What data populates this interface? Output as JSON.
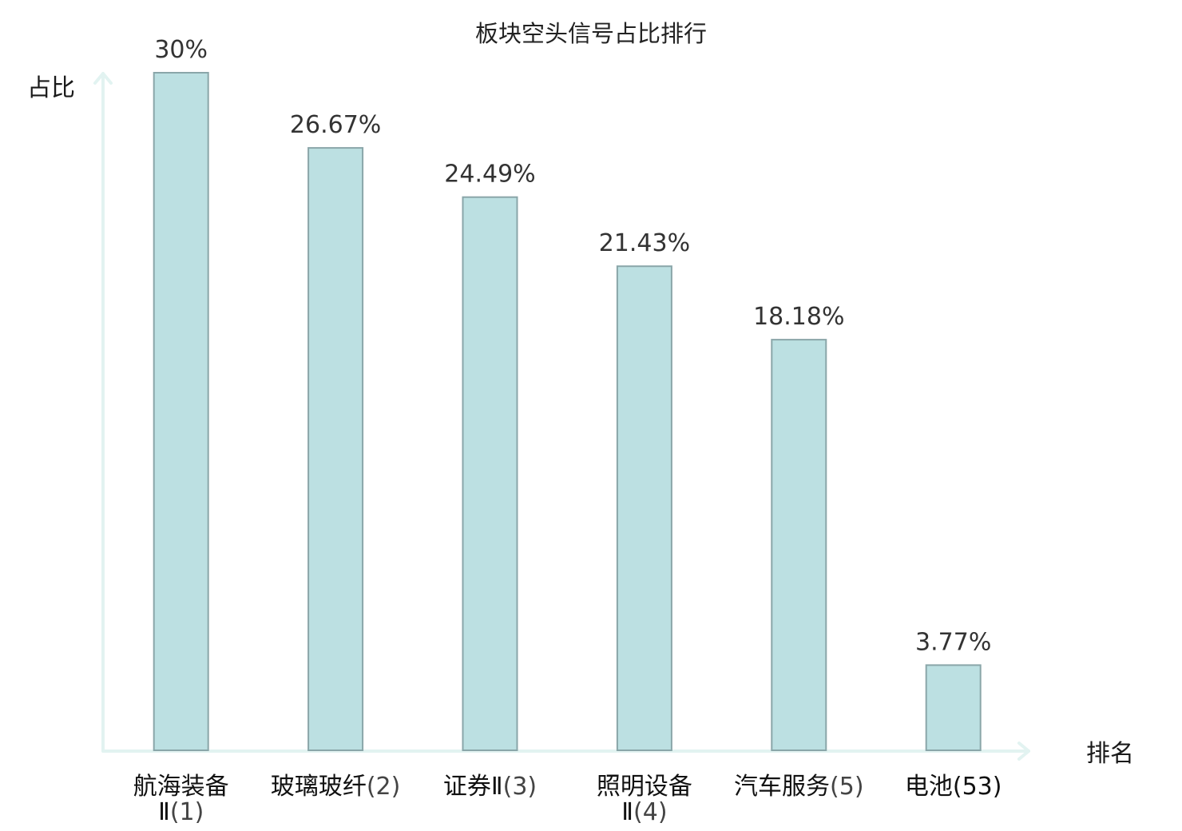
{
  "chart_data": {
    "type": "bar",
    "title": "板块空头信号占比排行",
    "ylabel": "占比",
    "xlabel": "排名",
    "ylim": [
      0,
      30
    ],
    "grid": false,
    "categories": [
      {
        "lines": [
          {
            "name": "航海装备"
          },
          {
            "name": "Ⅱ",
            "rank": "(1)"
          }
        ],
        "highlight": false
      },
      {
        "lines": [
          {
            "name": "玻璃玻纤",
            "rank": "(2)"
          }
        ],
        "highlight": false
      },
      {
        "lines": [
          {
            "name": "证券Ⅱ",
            "rank": "(3)"
          }
        ],
        "highlight": false
      },
      {
        "lines": [
          {
            "name": "照明设备"
          },
          {
            "name": "Ⅱ",
            "rank": "(4)"
          }
        ],
        "highlight": false
      },
      {
        "lines": [
          {
            "name": "汽车服务",
            "rank": "(5)"
          }
        ],
        "highlight": false
      },
      {
        "lines": [
          {
            "name": "电池",
            "rank": "(53)"
          }
        ],
        "highlight": true
      }
    ],
    "values": [
      30,
      26.67,
      24.49,
      21.43,
      18.18,
      3.77
    ],
    "value_labels": [
      "30%",
      "26.67%",
      "24.49%",
      "21.43%",
      "18.18%",
      "3.77%"
    ],
    "colors": {
      "bar_fill": "#bce0e2",
      "bar_stroke": "#8aa6a9",
      "axis": "#e2f3f1",
      "highlight": "#e0161d",
      "text": "#111111"
    }
  }
}
